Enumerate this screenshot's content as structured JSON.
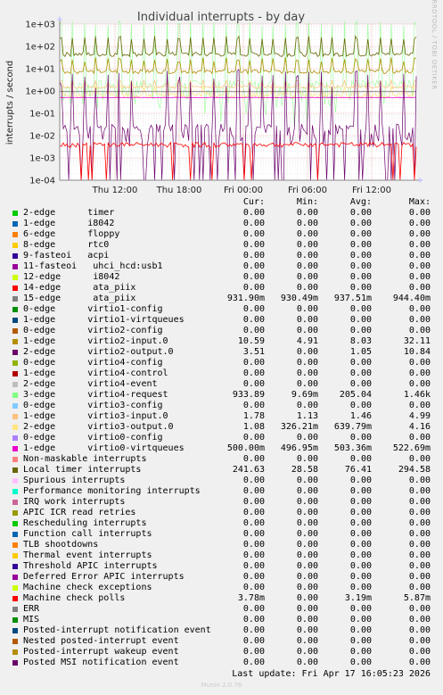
{
  "chart_data": {
    "type": "line",
    "title": "Individual interrupts - by day",
    "ylabel": "interrupts / second",
    "side_label": "RRDTOOL / TOBI OETIKER",
    "yscale": "log",
    "ylim": [
      0.0001,
      1000
    ],
    "yticks": [
      "1e+03",
      "1e+02",
      "1e+01",
      "1e+00",
      "1e-01",
      "1e-02",
      "1e-03",
      "1e-04"
    ],
    "xticks": [
      "Thu 12:00",
      "Thu 18:00",
      "Fri 00:00",
      "Fri 06:00",
      "Fri 12:00"
    ],
    "grid": true,
    "columns": [
      "Cur:",
      "Min:",
      "Avg:",
      "Max:"
    ],
    "series": [
      {
        "name": "2-edge      timer",
        "color": "#00cc00",
        "cur": "0.00",
        "min": "0.00",
        "avg": "0.00",
        "max": "0.00"
      },
      {
        "name": "1-edge      i8042",
        "color": "#0066b3",
        "cur": "0.00",
        "min": "0.00",
        "avg": "0.00",
        "max": "0.00"
      },
      {
        "name": "6-edge      floppy",
        "color": "#ff8000",
        "cur": "0.00",
        "min": "0.00",
        "avg": "0.00",
        "max": "0.00"
      },
      {
        "name": "8-edge      rtc0",
        "color": "#ffcc00",
        "cur": "0.00",
        "min": "0.00",
        "avg": "0.00",
        "max": "0.00"
      },
      {
        "name": "9-fasteoi   acpi",
        "color": "#330099",
        "cur": "0.00",
        "min": "0.00",
        "avg": "0.00",
        "max": "0.00"
      },
      {
        "name": "11-fasteoi   uhci_hcd:usb1",
        "color": "#990099",
        "cur": "0.00",
        "min": "0.00",
        "avg": "0.00",
        "max": "0.00"
      },
      {
        "name": "12-edge      i8042",
        "color": "#ccff00",
        "cur": "0.00",
        "min": "0.00",
        "avg": "0.00",
        "max": "0.00"
      },
      {
        "name": "14-edge      ata_piix",
        "color": "#ff0000",
        "cur": "0.00",
        "min": "0.00",
        "avg": "0.00",
        "max": "0.00"
      },
      {
        "name": "15-edge      ata_piix",
        "color": "#808080",
        "cur": "931.90m",
        "min": "930.49m",
        "avg": "937.51m",
        "max": "944.40m"
      },
      {
        "name": "0-edge      virtio1-config",
        "color": "#008f00",
        "cur": "0.00",
        "min": "0.00",
        "avg": "0.00",
        "max": "0.00"
      },
      {
        "name": "1-edge      virtio1-virtqueues",
        "color": "#00487d",
        "cur": "0.00",
        "min": "0.00",
        "avg": "0.00",
        "max": "0.00"
      },
      {
        "name": "0-edge      virtio2-config",
        "color": "#b35a00",
        "cur": "0.00",
        "min": "0.00",
        "avg": "0.00",
        "max": "0.00"
      },
      {
        "name": "1-edge      virtio2-input.0",
        "color": "#b38f00",
        "cur": "10.59",
        "min": "4.91",
        "avg": "8.03",
        "max": "32.11"
      },
      {
        "name": "2-edge      virtio2-output.0",
        "color": "#6b006b",
        "cur": "3.51",
        "min": "0.00",
        "avg": "1.05",
        "max": "10.84"
      },
      {
        "name": "0-edge      virtio4-config",
        "color": "#8fb300",
        "cur": "0.00",
        "min": "0.00",
        "avg": "0.00",
        "max": "0.00"
      },
      {
        "name": "1-edge      virtio4-control",
        "color": "#b30000",
        "cur": "0.00",
        "min": "0.00",
        "avg": "0.00",
        "max": "0.00"
      },
      {
        "name": "2-edge      virtio4-event",
        "color": "#bebebe",
        "cur": "0.00",
        "min": "0.00",
        "avg": "0.00",
        "max": "0.00"
      },
      {
        "name": "3-edge      virtio4-request",
        "color": "#80ff80",
        "cur": "933.89",
        "min": "9.69m",
        "avg": "205.04",
        "max": "1.46k"
      },
      {
        "name": "0-edge      virtio3-config",
        "color": "#80c9ff",
        "cur": "0.00",
        "min": "0.00",
        "avg": "0.00",
        "max": "0.00"
      },
      {
        "name": "1-edge      virtio3-input.0",
        "color": "#ffc080",
        "cur": "1.78",
        "min": "1.13",
        "avg": "1.46",
        "max": "4.99"
      },
      {
        "name": "2-edge      virtio3-output.0",
        "color": "#ffe680",
        "cur": "1.08",
        "min": "326.21m",
        "avg": "639.79m",
        "max": "4.16"
      },
      {
        "name": "0-edge      virtio0-config",
        "color": "#aa80ff",
        "cur": "0.00",
        "min": "0.00",
        "avg": "0.00",
        "max": "0.00"
      },
      {
        "name": "1-edge      virtio0-virtqueues",
        "color": "#ee00cc",
        "cur": "500.00m",
        "min": "496.95m",
        "avg": "503.36m",
        "max": "522.69m"
      },
      {
        "name": "Non-maskable interrupts",
        "color": "#ff8080",
        "cur": "0.00",
        "min": "0.00",
        "avg": "0.00",
        "max": "0.00"
      },
      {
        "name": "Local timer interrupts",
        "color": "#666600",
        "cur": "241.63",
        "min": "28.58",
        "avg": "76.41",
        "max": "294.58"
      },
      {
        "name": "Spurious interrupts",
        "color": "#ffbfff",
        "cur": "0.00",
        "min": "0.00",
        "avg": "0.00",
        "max": "0.00"
      },
      {
        "name": "Performance monitoring interrupts",
        "color": "#00ffcc",
        "cur": "0.00",
        "min": "0.00",
        "avg": "0.00",
        "max": "0.00"
      },
      {
        "name": "IRQ work interrupts",
        "color": "#cc6699",
        "cur": "0.00",
        "min": "0.00",
        "avg": "0.00",
        "max": "0.00"
      },
      {
        "name": "APIC ICR read retries",
        "color": "#999900",
        "cur": "0.00",
        "min": "0.00",
        "avg": "0.00",
        "max": "0.00"
      },
      {
        "name": "Rescheduling interrupts",
        "color": "#00cc00",
        "cur": "0.00",
        "min": "0.00",
        "avg": "0.00",
        "max": "0.00"
      },
      {
        "name": "Function call interrupts",
        "color": "#0066b3",
        "cur": "0.00",
        "min": "0.00",
        "avg": "0.00",
        "max": "0.00"
      },
      {
        "name": "TLB shootdowns",
        "color": "#ff8000",
        "cur": "0.00",
        "min": "0.00",
        "avg": "0.00",
        "max": "0.00"
      },
      {
        "name": "Thermal event interrupts",
        "color": "#ffcc00",
        "cur": "0.00",
        "min": "0.00",
        "avg": "0.00",
        "max": "0.00"
      },
      {
        "name": "Threshold APIC interrupts",
        "color": "#330099",
        "cur": "0.00",
        "min": "0.00",
        "avg": "0.00",
        "max": "0.00"
      },
      {
        "name": "Deferred Error APIC interrupts",
        "color": "#990099",
        "cur": "0.00",
        "min": "0.00",
        "avg": "0.00",
        "max": "0.00"
      },
      {
        "name": "Machine check exceptions",
        "color": "#ccff00",
        "cur": "0.00",
        "min": "0.00",
        "avg": "0.00",
        "max": "0.00"
      },
      {
        "name": "Machine check polls",
        "color": "#ff0000",
        "cur": "3.78m",
        "min": "0.00",
        "avg": "3.19m",
        "max": "5.87m"
      },
      {
        "name": "ERR",
        "color": "#808080",
        "cur": "0.00",
        "min": "0.00",
        "avg": "0.00",
        "max": "0.00"
      },
      {
        "name": "MIS",
        "color": "#008f00",
        "cur": "0.00",
        "min": "0.00",
        "avg": "0.00",
        "max": "0.00"
      },
      {
        "name": "Posted-interrupt notification event",
        "color": "#00487d",
        "cur": "0.00",
        "min": "0.00",
        "avg": "0.00",
        "max": "0.00"
      },
      {
        "name": "Nested posted-interrupt event",
        "color": "#b35a00",
        "cur": "0.00",
        "min": "0.00",
        "avg": "0.00",
        "max": "0.00"
      },
      {
        "name": "Posted-interrupt wakeup event",
        "color": "#b38f00",
        "cur": "0.00",
        "min": "0.00",
        "avg": "0.00",
        "max": "0.00"
      },
      {
        "name": "Posted MSI notification event",
        "color": "#6b006b",
        "cur": "0.00",
        "min": "0.00",
        "avg": "0.00",
        "max": "0.00"
      }
    ]
  },
  "last_update": "Last update: Fri Apr 17 16:05:23 2026",
  "munin_version": "Munin 2.0.76"
}
